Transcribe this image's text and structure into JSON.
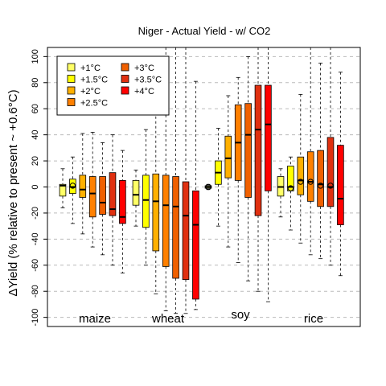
{
  "chart_data": {
    "type": "boxplot",
    "title": "Niger - Actual Yield - w/ CO2",
    "ylabel": "ΔYield (% relative to present ~ +0.6°C)",
    "ylim": [
      -107,
      107
    ],
    "yticks": [
      -100,
      -80,
      -60,
      -40,
      -20,
      0,
      20,
      40,
      60,
      80,
      100
    ],
    "grid": "horizontal dashed",
    "legend_position": "top-left",
    "legend": [
      {
        "label": "+1°C",
        "color": "#FFFF66"
      },
      {
        "label": "+1.5°C",
        "color": "#FFFF00"
      },
      {
        "label": "+2°C",
        "color": "#FFB000"
      },
      {
        "label": "+2.5°C",
        "color": "#FF8000"
      },
      {
        "label": "+3°C",
        "color": "#F06000"
      },
      {
        "label": "+3.5°C",
        "color": "#E03010"
      },
      {
        "label": "+4°C",
        "color": "#FF0000"
      }
    ],
    "groups": [
      {
        "name": "maize",
        "boxes": [
          {
            "level": "+1°C",
            "whisker_low": -16,
            "q1": -7,
            "median": 1,
            "q3": 2,
            "whisker_high": 14,
            "marker": null
          },
          {
            "level": "+1.5°C",
            "whisker_low": -28,
            "q1": -5,
            "median": 0,
            "q3": 6,
            "whisker_high": 23,
            "marker": 1
          },
          {
            "level": "+2°C",
            "whisker_low": -36,
            "q1": -8,
            "median": -2,
            "q3": 9,
            "whisker_high": 41,
            "marker": null
          },
          {
            "level": "+2.5°C",
            "whisker_low": -46,
            "q1": -23,
            "median": -5,
            "q3": 8,
            "whisker_high": 42,
            "marker": null
          },
          {
            "level": "+3°C",
            "whisker_low": -52,
            "q1": -21,
            "median": -12,
            "q3": 8,
            "whisker_high": 34,
            "marker": null
          },
          {
            "level": "+3.5°C",
            "whisker_low": -60,
            "q1": -22,
            "median": -17,
            "q3": 11,
            "whisker_high": 40,
            "marker": null
          },
          {
            "level": "+4°C",
            "whisker_low": -66,
            "q1": -28,
            "median": -23,
            "q3": 5,
            "whisker_high": 28,
            "marker": null
          }
        ]
      },
      {
        "name": "wheat",
        "boxes": [
          {
            "level": "+1°C",
            "whisker_low": -30,
            "q1": -14,
            "median": -6,
            "q3": 5,
            "whisker_high": 13,
            "marker": null
          },
          {
            "level": "+1.5°C",
            "whisker_low": -60,
            "q1": -31,
            "median": -10,
            "q3": 9,
            "whisker_high": 44,
            "marker": null
          },
          {
            "level": "+2°C",
            "whisker_low": -82,
            "q1": -49,
            "median": -11,
            "q3": 10,
            "whisker_high": 80,
            "marker": null
          },
          {
            "level": "+2.5°C",
            "whisker_low": -95,
            "q1": -61,
            "median": -14,
            "q3": 9,
            "whisker_high": 107,
            "marker": null
          },
          {
            "level": "+3°C",
            "whisker_low": -97,
            "q1": -70,
            "median": -15,
            "q3": 8,
            "whisker_high": 107,
            "marker": null
          },
          {
            "level": "+3.5°C",
            "whisker_low": -97,
            "q1": -71,
            "median": -22,
            "q3": 4,
            "whisker_high": 107,
            "marker": null
          },
          {
            "level": "+4°C",
            "whisker_low": -94,
            "q1": -86,
            "median": -29,
            "q3": -3,
            "whisker_high": 81,
            "marker": null
          }
        ]
      },
      {
        "name": "soy",
        "boxes": [
          {
            "level": "+1°C",
            "whisker_low": -2,
            "q1": -1,
            "median": 0,
            "q3": 1,
            "whisker_high": 2,
            "marker": 0
          },
          {
            "level": "+1.5°C",
            "whisker_low": -30,
            "q1": 2,
            "median": 11,
            "q3": 20,
            "whisker_high": 45,
            "marker": null
          },
          {
            "level": "+2°C",
            "whisker_low": -46,
            "q1": 7,
            "median": 22,
            "q3": 39,
            "whisker_high": 70,
            "marker": null
          },
          {
            "level": "+2.5°C",
            "whisker_low": -58,
            "q1": 5,
            "median": 34,
            "q3": 63,
            "whisker_high": 84,
            "marker": null
          },
          {
            "level": "+3°C",
            "whisker_low": -72,
            "q1": -8,
            "median": 40,
            "q3": 64,
            "whisker_high": 100,
            "marker": null
          },
          {
            "level": "+3.5°C",
            "whisker_low": -80,
            "q1": -22,
            "median": 44,
            "q3": 78,
            "whisker_high": 107,
            "marker": null
          },
          {
            "level": "+4°C",
            "whisker_low": -88,
            "q1": -3,
            "median": 48,
            "q3": 78,
            "whisker_high": 107,
            "marker": null
          }
        ]
      },
      {
        "name": "rice",
        "boxes": [
          {
            "level": "+1°C",
            "whisker_low": -23,
            "q1": -7,
            "median": 0,
            "q3": 8,
            "whisker_high": 14,
            "marker": null
          },
          {
            "level": "+1.5°C",
            "whisker_low": -33,
            "q1": -3,
            "median": 0,
            "q3": 16,
            "whisker_high": 23,
            "marker": -1
          },
          {
            "level": "+2°C",
            "whisker_low": -43,
            "q1": -6,
            "median": 5,
            "q3": 23,
            "whisker_high": 71,
            "marker": 4
          },
          {
            "level": "+2.5°C",
            "whisker_low": -52,
            "q1": -11,
            "median": 4,
            "q3": 27,
            "whisker_high": 107,
            "marker": 4
          },
          {
            "level": "+3°C",
            "whisker_low": -55,
            "q1": -15,
            "median": 2,
            "q3": 28,
            "whisker_high": 95,
            "marker": 1
          },
          {
            "level": "+3.5°C",
            "whisker_low": -60,
            "q1": -15,
            "median": 0,
            "q3": 38,
            "whisker_high": 107,
            "marker": 1
          },
          {
            "level": "+4°C",
            "whisker_low": -68,
            "q1": -29,
            "median": -9,
            "q3": 32,
            "whisker_high": 88,
            "marker": null
          }
        ]
      }
    ]
  }
}
